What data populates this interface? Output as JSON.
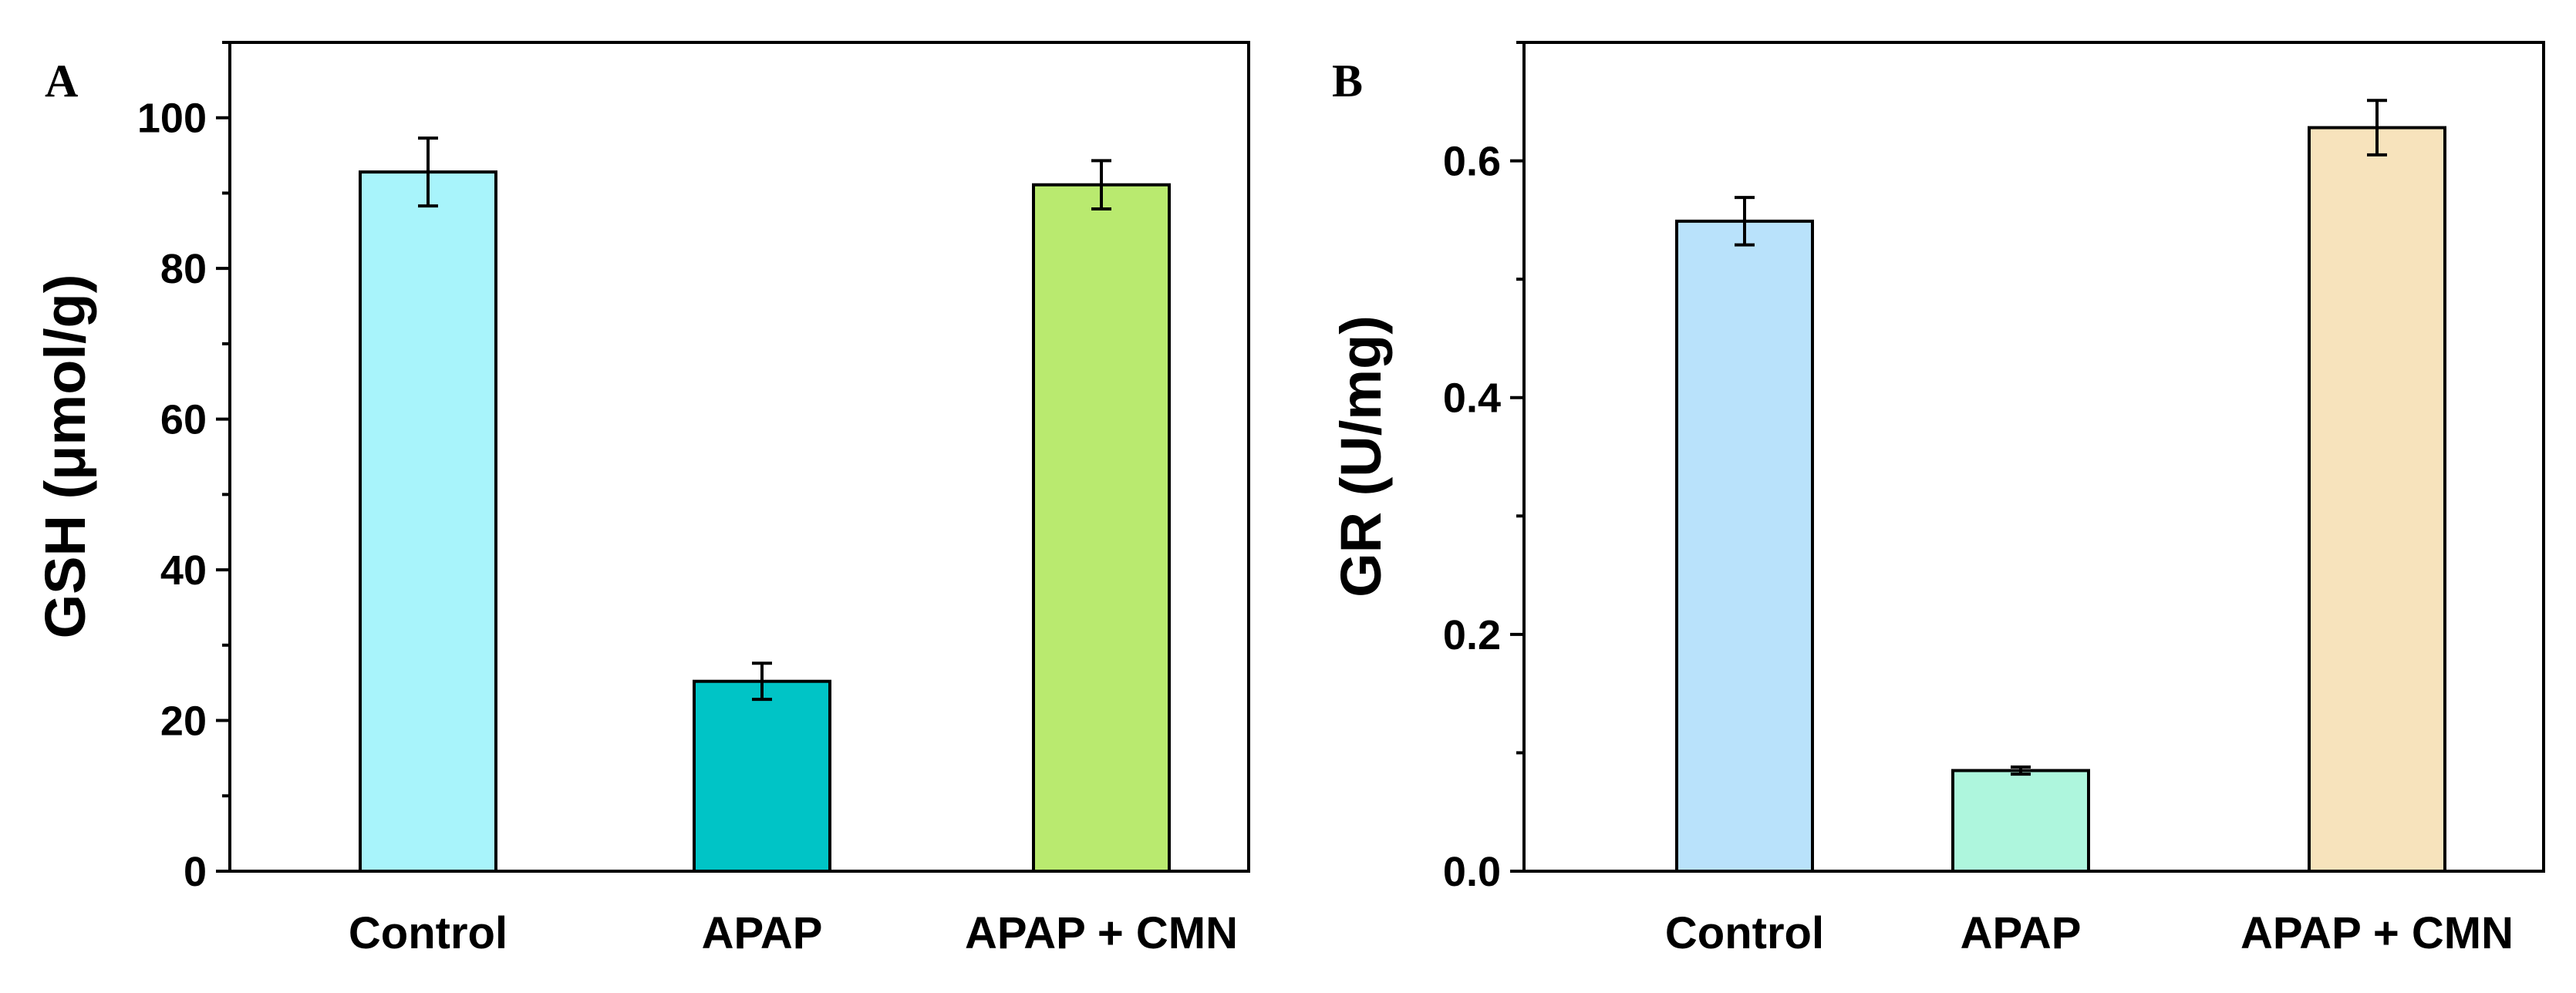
{
  "chart_data": [
    {
      "panel": "A",
      "type": "bar",
      "categories": [
        "Control",
        "APAP",
        "APAP + CMN"
      ],
      "values": [
        92.8,
        25.2,
        91.1
      ],
      "errors": [
        4.5,
        2.4,
        3.2
      ],
      "colors": [
        "#a8f4fb",
        "#00c4c6",
        "#b9ea6f"
      ],
      "ylabel": "GSH (μmol/g)",
      "xlabel": "",
      "ylim": [
        0,
        110
      ],
      "yticks": [
        "0",
        "20",
        "40",
        "60",
        "80",
        "100"
      ],
      "ytick_values": [
        0,
        20,
        40,
        60,
        80,
        100
      ]
    },
    {
      "panel": "B",
      "type": "bar",
      "categories": [
        "Control",
        "APAP",
        "APAP + CMN"
      ],
      "values": [
        0.549,
        0.085,
        0.628
      ],
      "errors": [
        0.02,
        0.003,
        0.023
      ],
      "colors": [
        "#b9e2fb",
        "#aef6dd",
        "#f7e3bc"
      ],
      "ylabel": "GR (U/mg)",
      "xlabel": "",
      "ylim": [
        0,
        0.7
      ],
      "yticks": [
        "0.0",
        "0.2",
        "0.4",
        "0.6"
      ],
      "ytick_values": [
        0,
        0.2,
        0.4,
        0.6
      ]
    }
  ]
}
